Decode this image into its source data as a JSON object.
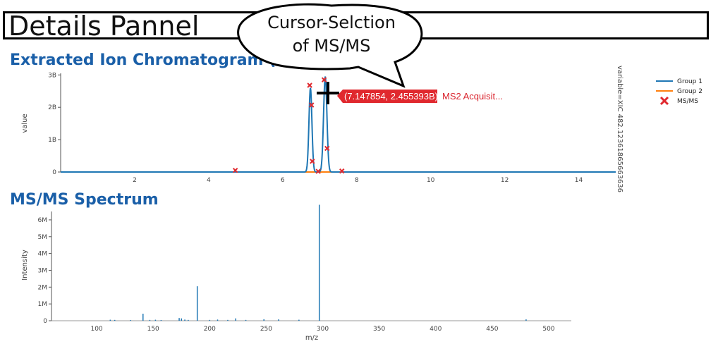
{
  "header": {
    "title": "Details Pannel"
  },
  "callout": {
    "line1": "Cursor-Selction",
    "line2": "of MS/MS"
  },
  "xic": {
    "section_title": "Extracted Ion Chromatogram (XIC)",
    "ylabel": "value",
    "side_label": "variable=XIC 482.12361865663636",
    "legend": {
      "group1": "Group 1",
      "group2": "Group 2",
      "msms": "MS/MS"
    },
    "colors": {
      "group1": "#1f77b4",
      "group2": "#ff7f0e",
      "msms": "#e0282e"
    },
    "tooltip": {
      "coords": "(7.147854, 2.455393B)",
      "name": "MS2 Acquisit..."
    }
  },
  "spectrum": {
    "section_title": "MS/MS Spectrum",
    "xlabel": "m/z",
    "ylabel": "Intensity",
    "color": "#1f77b4"
  },
  "chart_data": [
    {
      "type": "line",
      "title": "Extracted Ion Chromatogram (XIC)",
      "xlabel": "",
      "ylabel": "value",
      "xlim": [
        0,
        15
      ],
      "ylim": [
        0,
        3.05
      ],
      "x_ticks": [
        2,
        4,
        6,
        8,
        10,
        12,
        14
      ],
      "y_ticks": [
        {
          "v": 0,
          "label": "0"
        },
        {
          "v": 1,
          "label": "1B"
        },
        {
          "v": 2,
          "label": "2B"
        },
        {
          "v": 3,
          "label": "3B"
        }
      ],
      "grid": false,
      "legend": "top-right",
      "series": [
        {
          "name": "Group 1",
          "kind": "peaks",
          "peaks": [
            {
              "center": 6.75,
              "height": 2.6,
              "width": 0.04
            },
            {
              "center": 7.15,
              "height": 2.95,
              "width": 0.045
            }
          ]
        },
        {
          "name": "Group 2",
          "kind": "flat",
          "value": 0.0
        },
        {
          "name": "MS/MS",
          "kind": "markers",
          "points": [
            [
              4.72,
              0.05
            ],
            [
              6.73,
              2.68
            ],
            [
              6.78,
              2.07
            ],
            [
              6.8,
              0.33
            ],
            [
              6.96,
              0.02
            ],
            [
              7.12,
              2.85
            ],
            [
              7.2,
              0.73
            ],
            [
              7.6,
              0.03
            ]
          ]
        }
      ],
      "hover": {
        "x": 7.147854,
        "y": 2.455393
      }
    },
    {
      "type": "bar",
      "title": "MS/MS Spectrum",
      "xlabel": "m/z",
      "ylabel": "Intensity",
      "xlim": [
        60,
        520
      ],
      "ylim": [
        0,
        6.5
      ],
      "x_ticks": [
        100,
        150,
        200,
        250,
        300,
        350,
        400,
        450,
        500
      ],
      "y_ticks": [
        {
          "v": 0,
          "label": "0"
        },
        {
          "v": 1,
          "label": "1M"
        },
        {
          "v": 2,
          "label": "2M"
        },
        {
          "v": 3,
          "label": "3M"
        },
        {
          "v": 4,
          "label": "4M"
        },
        {
          "v": 5,
          "label": "5M"
        },
        {
          "v": 6,
          "label": "6M"
        }
      ],
      "x": [
        112,
        116,
        130,
        141,
        147,
        152,
        157,
        173,
        175,
        178,
        181,
        189,
        200,
        207,
        216,
        223,
        232,
        248,
        261,
        279,
        297,
        480
      ],
      "values": [
        0.06,
        0.05,
        0.04,
        0.42,
        0.05,
        0.06,
        0.04,
        0.16,
        0.14,
        0.07,
        0.05,
        2.05,
        0.05,
        0.07,
        0.05,
        0.14,
        0.05,
        0.09,
        0.08,
        0.06,
        6.9,
        0.08
      ]
    }
  ]
}
